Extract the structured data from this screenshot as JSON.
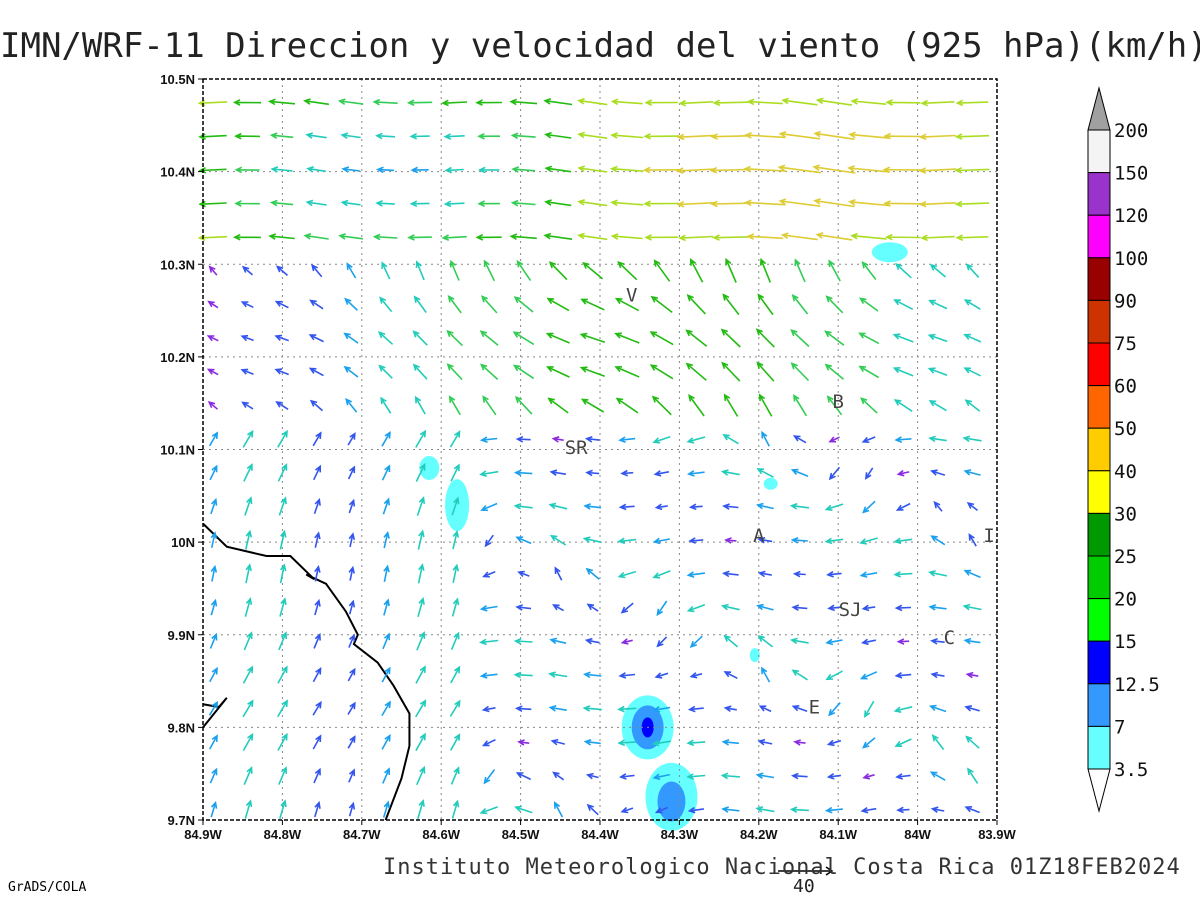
{
  "title": "IMN/WRF-11 Direccion y velocidad del viento (925 hPa)(km/h)",
  "footer": "Instituto Meteorologico Nacional Costa Rica 01Z18FEB2024",
  "credit": "GrADS/COLA",
  "reference_vector_label": "40",
  "map": {
    "lon_range": [
      -84.9,
      -83.9
    ],
    "lat_range": [
      9.7,
      10.5
    ],
    "x_ticks": [
      "84.9W",
      "84.8W",
      "84.7W",
      "84.6W",
      "84.5W",
      "84.4W",
      "84.3W",
      "84.2W",
      "84.1W",
      "84W",
      "83.9W"
    ],
    "y_ticks": [
      "9.7N",
      "9.8N",
      "9.9N",
      "10N",
      "10.1N",
      "10.2N",
      "10.3N",
      "10.4N",
      "10.5N"
    ],
    "places": [
      {
        "label": "V",
        "lon": -84.36,
        "lat": 10.26
      },
      {
        "label": "SR",
        "lon": -84.43,
        "lat": 10.095
      },
      {
        "label": "B",
        "lon": -84.1,
        "lat": 10.145
      },
      {
        "label": "A",
        "lon": -84.2,
        "lat": 10.0
      },
      {
        "label": "I",
        "lon": -83.91,
        "lat": 10.0
      },
      {
        "label": "SJ",
        "lon": -84.085,
        "lat": 9.92
      },
      {
        "label": "C",
        "lon": -83.96,
        "lat": 9.89
      },
      {
        "label": "E",
        "lon": -84.13,
        "lat": 9.815
      }
    ]
  },
  "colorbar": {
    "labels": [
      "200",
      "150",
      "120",
      "100",
      "90",
      "75",
      "60",
      "50",
      "40",
      "30",
      "25",
      "20",
      "15",
      "12.5",
      "7",
      "3.5"
    ],
    "colors": [
      "#a0a0a0",
      "#f4f4f4",
      "#9933cc",
      "#ff00ff",
      "#990000",
      "#cc3300",
      "#ff0000",
      "#ff6600",
      "#ffcc00",
      "#ffff00",
      "#009900",
      "#00cc00",
      "#00ff00",
      "#0000ff",
      "#3399ff",
      "#66ffff"
    ]
  }
}
